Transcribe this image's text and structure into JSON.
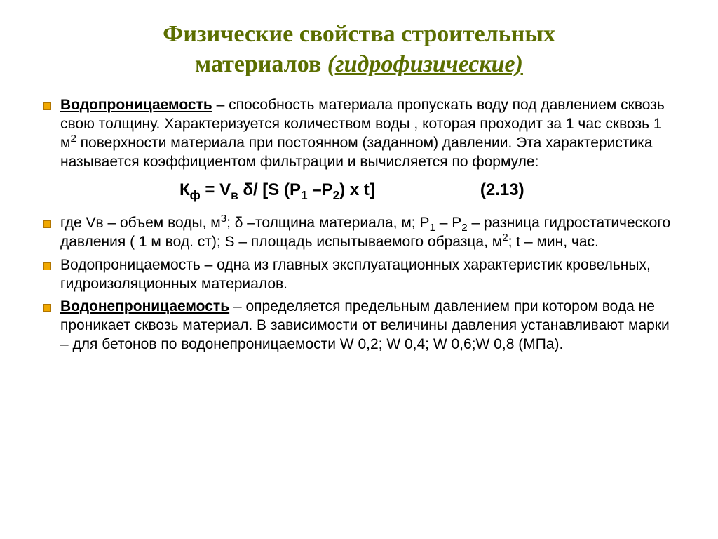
{
  "colors": {
    "title_color": "#5b6e00",
    "bullet_fill": "#f0a800",
    "bullet_border": "#b07400",
    "text_color": "#000000",
    "background": "#ffffff"
  },
  "typography": {
    "title_fontsize": 34,
    "body_fontsize": 21,
    "formula_fontsize": 24,
    "title_family": "Times New Roman, serif",
    "body_family": "Arial, sans-serif"
  },
  "title": {
    "line1": "Физические свойства строительных",
    "line2_prefix": "материалов ",
    "line2_subtitle": "(гидрофизические)"
  },
  "bullets": [
    {
      "term": "Водопроницаемость",
      "text_after_term": " – способность материала пропускать воду под давлением сквозь свою толщину. Характеризуется количеством воды , которая проходит за 1 час сквозь 1 м",
      "sup1": "2",
      "text_tail": " поверхности материала при постоянном (заданном) давлении. Эта характеристика называется коэффициентом фильтрации и вычисляется по формуле:"
    }
  ],
  "formula": {
    "k": "К",
    "k_sub": "ф",
    "eq": " = V",
    "v_sub": "в",
    "delta": " δ/ [S (P",
    "p1_sub": "1",
    "mid": " –P",
    "p2_sub": "2",
    "end": ") x t]",
    "number": "(2.13)"
  },
  "bullets2": [
    {
      "pre": "где Vв – объем воды, м",
      "sup1": "3",
      "mid1": "; δ –толщина материала, м; P",
      "sub1": "1",
      "mid2": " – P",
      "sub2": "2",
      "mid3": " – разница гидростатического давления ( 1 м вод. ст); S – площадь испытываемого образца, м",
      "sup2": "2",
      "tail": "; t – мин, час."
    },
    {
      "plain": "Водопроницаемость – одна из главных эксплуатационных характеристик кровельных, гидроизоляционных материалов."
    },
    {
      "term": "Водонепроницаемость",
      "text": " – определяется предельным давлением при котором вода не проникает сквозь материал. В зависимости от величины давления устанавливают марки – для бетонов по водонепроницаемости W 0,2; W  0,4; W 0,6;W 0,8 (МПа)."
    }
  ]
}
